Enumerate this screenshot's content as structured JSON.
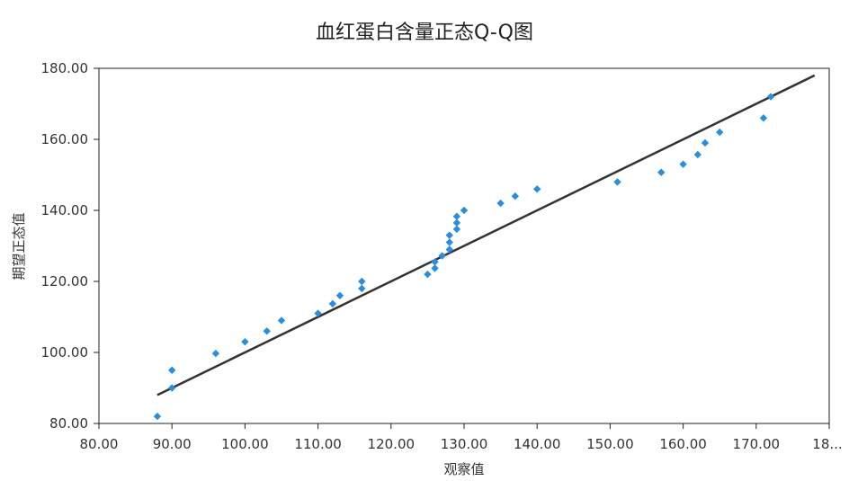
{
  "chart_data": {
    "type": "scatter",
    "title": "血红蛋白含量正态Q-Q图",
    "xlabel": "观察值",
    "ylabel": "期望正态值",
    "xlim": [
      80,
      180
    ],
    "ylim": [
      80,
      180
    ],
    "x_ticks": [
      "80.00",
      "90.00",
      "100.00",
      "110.00",
      "120.00",
      "130.00",
      "140.00",
      "150.00",
      "160.00",
      "170.00",
      "18..."
    ],
    "y_ticks": [
      "80.00",
      "100.00",
      "120.00",
      "140.00",
      "160.00",
      "180.00"
    ],
    "grid": false,
    "legend": "none",
    "point_marker": "diamond",
    "point_color": "#2a8ee0",
    "line_color": "#333333",
    "reference_line": {
      "x": [
        88,
        178
      ],
      "y": [
        88,
        178
      ]
    },
    "points": [
      {
        "x": 88,
        "y": 82
      },
      {
        "x": 90,
        "y": 90
      },
      {
        "x": 90,
        "y": 95
      },
      {
        "x": 96,
        "y": 99.7
      },
      {
        "x": 100,
        "y": 103
      },
      {
        "x": 103,
        "y": 106
      },
      {
        "x": 105,
        "y": 109
      },
      {
        "x": 110,
        "y": 111
      },
      {
        "x": 112,
        "y": 113.7
      },
      {
        "x": 113,
        "y": 116
      },
      {
        "x": 116,
        "y": 118
      },
      {
        "x": 116,
        "y": 120
      },
      {
        "x": 125,
        "y": 122
      },
      {
        "x": 126,
        "y": 123.7
      },
      {
        "x": 126,
        "y": 125.5
      },
      {
        "x": 127,
        "y": 127.2
      },
      {
        "x": 128,
        "y": 129
      },
      {
        "x": 128,
        "y": 131
      },
      {
        "x": 128,
        "y": 133
      },
      {
        "x": 129,
        "y": 134.7
      },
      {
        "x": 129,
        "y": 136.5
      },
      {
        "x": 129,
        "y": 138.3
      },
      {
        "x": 130,
        "y": 140
      },
      {
        "x": 135,
        "y": 142
      },
      {
        "x": 137,
        "y": 144
      },
      {
        "x": 140,
        "y": 146
      },
      {
        "x": 151,
        "y": 148
      },
      {
        "x": 157,
        "y": 150.7
      },
      {
        "x": 160,
        "y": 153
      },
      {
        "x": 162,
        "y": 155.7
      },
      {
        "x": 163,
        "y": 159
      },
      {
        "x": 165,
        "y": 162
      },
      {
        "x": 171,
        "y": 166
      },
      {
        "x": 172,
        "y": 172
      }
    ]
  }
}
